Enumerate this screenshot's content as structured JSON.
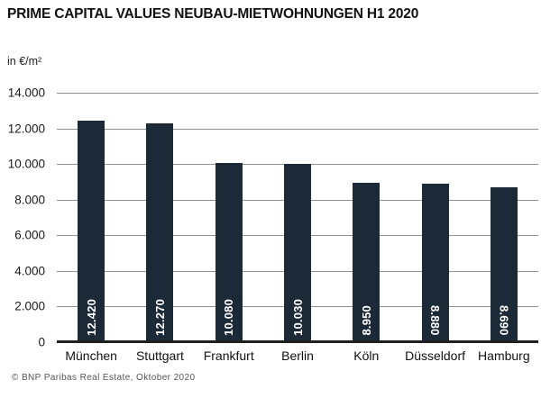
{
  "header": {
    "title": "PRIME CAPITAL VALUES NEUBAU-MIETWOHNUNGEN H1 2020",
    "unit": "in €/m²"
  },
  "footer": {
    "credit": "© BNP Paribas Real Estate, Oktober 2020"
  },
  "chart_data": {
    "type": "bar",
    "title": "PRIME CAPITAL VALUES NEUBAU-MIETWOHNUNGEN H1 2020",
    "unit": "in €/m²",
    "categories": [
      "München",
      "Stuttgart",
      "Frankfurt",
      "Berlin",
      "Köln",
      "Düsseldorf",
      "Hamburg"
    ],
    "values": [
      12420,
      12270,
      10080,
      10030,
      8950,
      8880,
      8690
    ],
    "value_labels": [
      "12.420",
      "12.270",
      "10.080",
      "10.030",
      "8.950",
      "8.880",
      "8.690"
    ],
    "value_label_rotation": [
      "ccw",
      "ccw",
      "ccw",
      "ccw",
      "ccw",
      "cw",
      "cw"
    ],
    "ylim": [
      0,
      14000
    ],
    "ytick_values": [
      0,
      2000,
      4000,
      6000,
      8000,
      10000,
      12000,
      14000
    ],
    "ytick_labels": [
      "0",
      "2.000",
      "4.000",
      "6.000",
      "8.000",
      "10.000",
      "12.000",
      "14.000"
    ],
    "grid": "horizontal",
    "legend": "none",
    "colors": {
      "bar": "#1c2a38",
      "value_label": "#ffffff",
      "gridline": "#8f9193",
      "axis": "#1f1f1f"
    }
  }
}
